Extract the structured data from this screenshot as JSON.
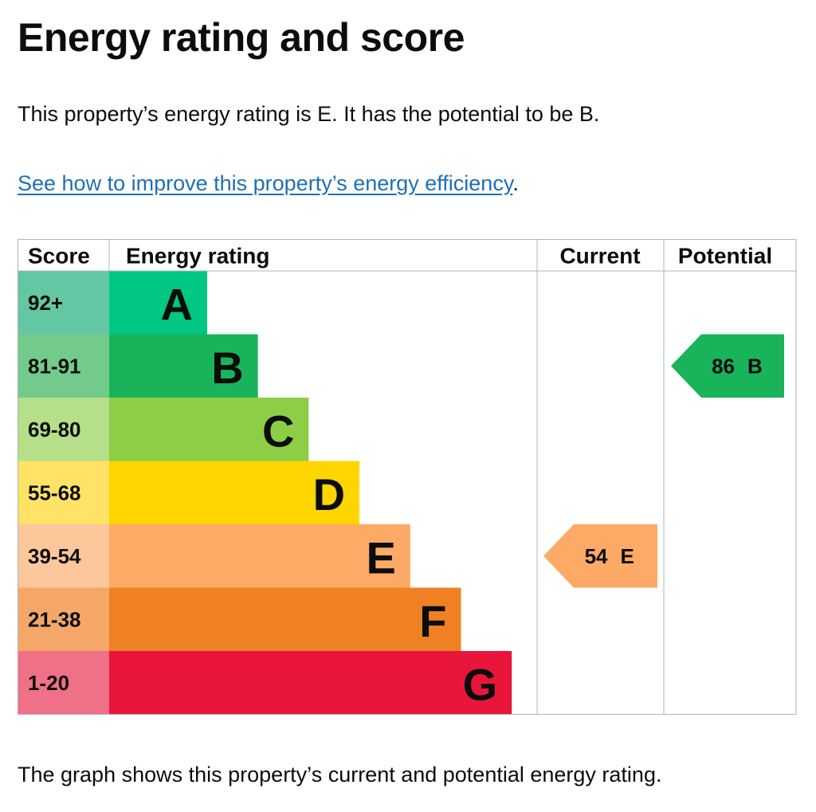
{
  "header": {
    "title": "Energy rating and score"
  },
  "summary": "This property’s energy rating is E. It has the potential to be B.",
  "link": {
    "text": "See how to improve this property’s energy efficiency",
    "suffix": "."
  },
  "chart": {
    "headers": [
      "Score",
      "Energy rating",
      "Current",
      "Potential"
    ],
    "bands": [
      {
        "score": "92+",
        "letter": "A",
        "color": "#00c781",
        "score_color": "#63c7a4"
      },
      {
        "score": "81-91",
        "letter": "B",
        "color": "#19b459",
        "score_color": "#73cb8b"
      },
      {
        "score": "69-80",
        "letter": "C",
        "color": "#8dce46",
        "score_color": "#b5df88"
      },
      {
        "score": "55-68",
        "letter": "D",
        "color": "#ffd500",
        "score_color": "#ffe266"
      },
      {
        "score": "39-54",
        "letter": "E",
        "color": "#fcaa65",
        "score_color": "#fdc79c"
      },
      {
        "score": "21-38",
        "letter": "F",
        "color": "#ef8023",
        "score_color": "#f4a769"
      },
      {
        "score": "1-20",
        "letter": "G",
        "color": "#e9153b",
        "score_color": "#f07088"
      }
    ],
    "current": {
      "score": 54,
      "letter": "E"
    },
    "potential": {
      "score": 86,
      "letter": "B"
    }
  },
  "footer": "The graph shows this property’s current and potential energy rating."
}
